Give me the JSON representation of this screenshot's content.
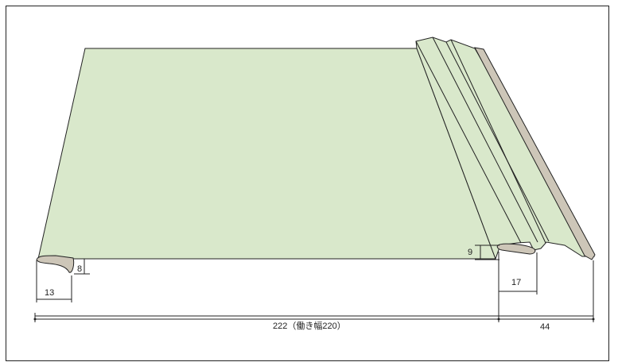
{
  "diagram": {
    "colors": {
      "panel_fill": "#d9e8cb",
      "edge_fill": "#cdc6b8",
      "line": "#222222"
    },
    "dimensions": {
      "left_hem_width": "13",
      "left_hem_height": "8",
      "right_offset_height": "9",
      "right_joint_width": "17",
      "total_width": "222（働き幅220）",
      "right_flange_width": "44"
    }
  }
}
